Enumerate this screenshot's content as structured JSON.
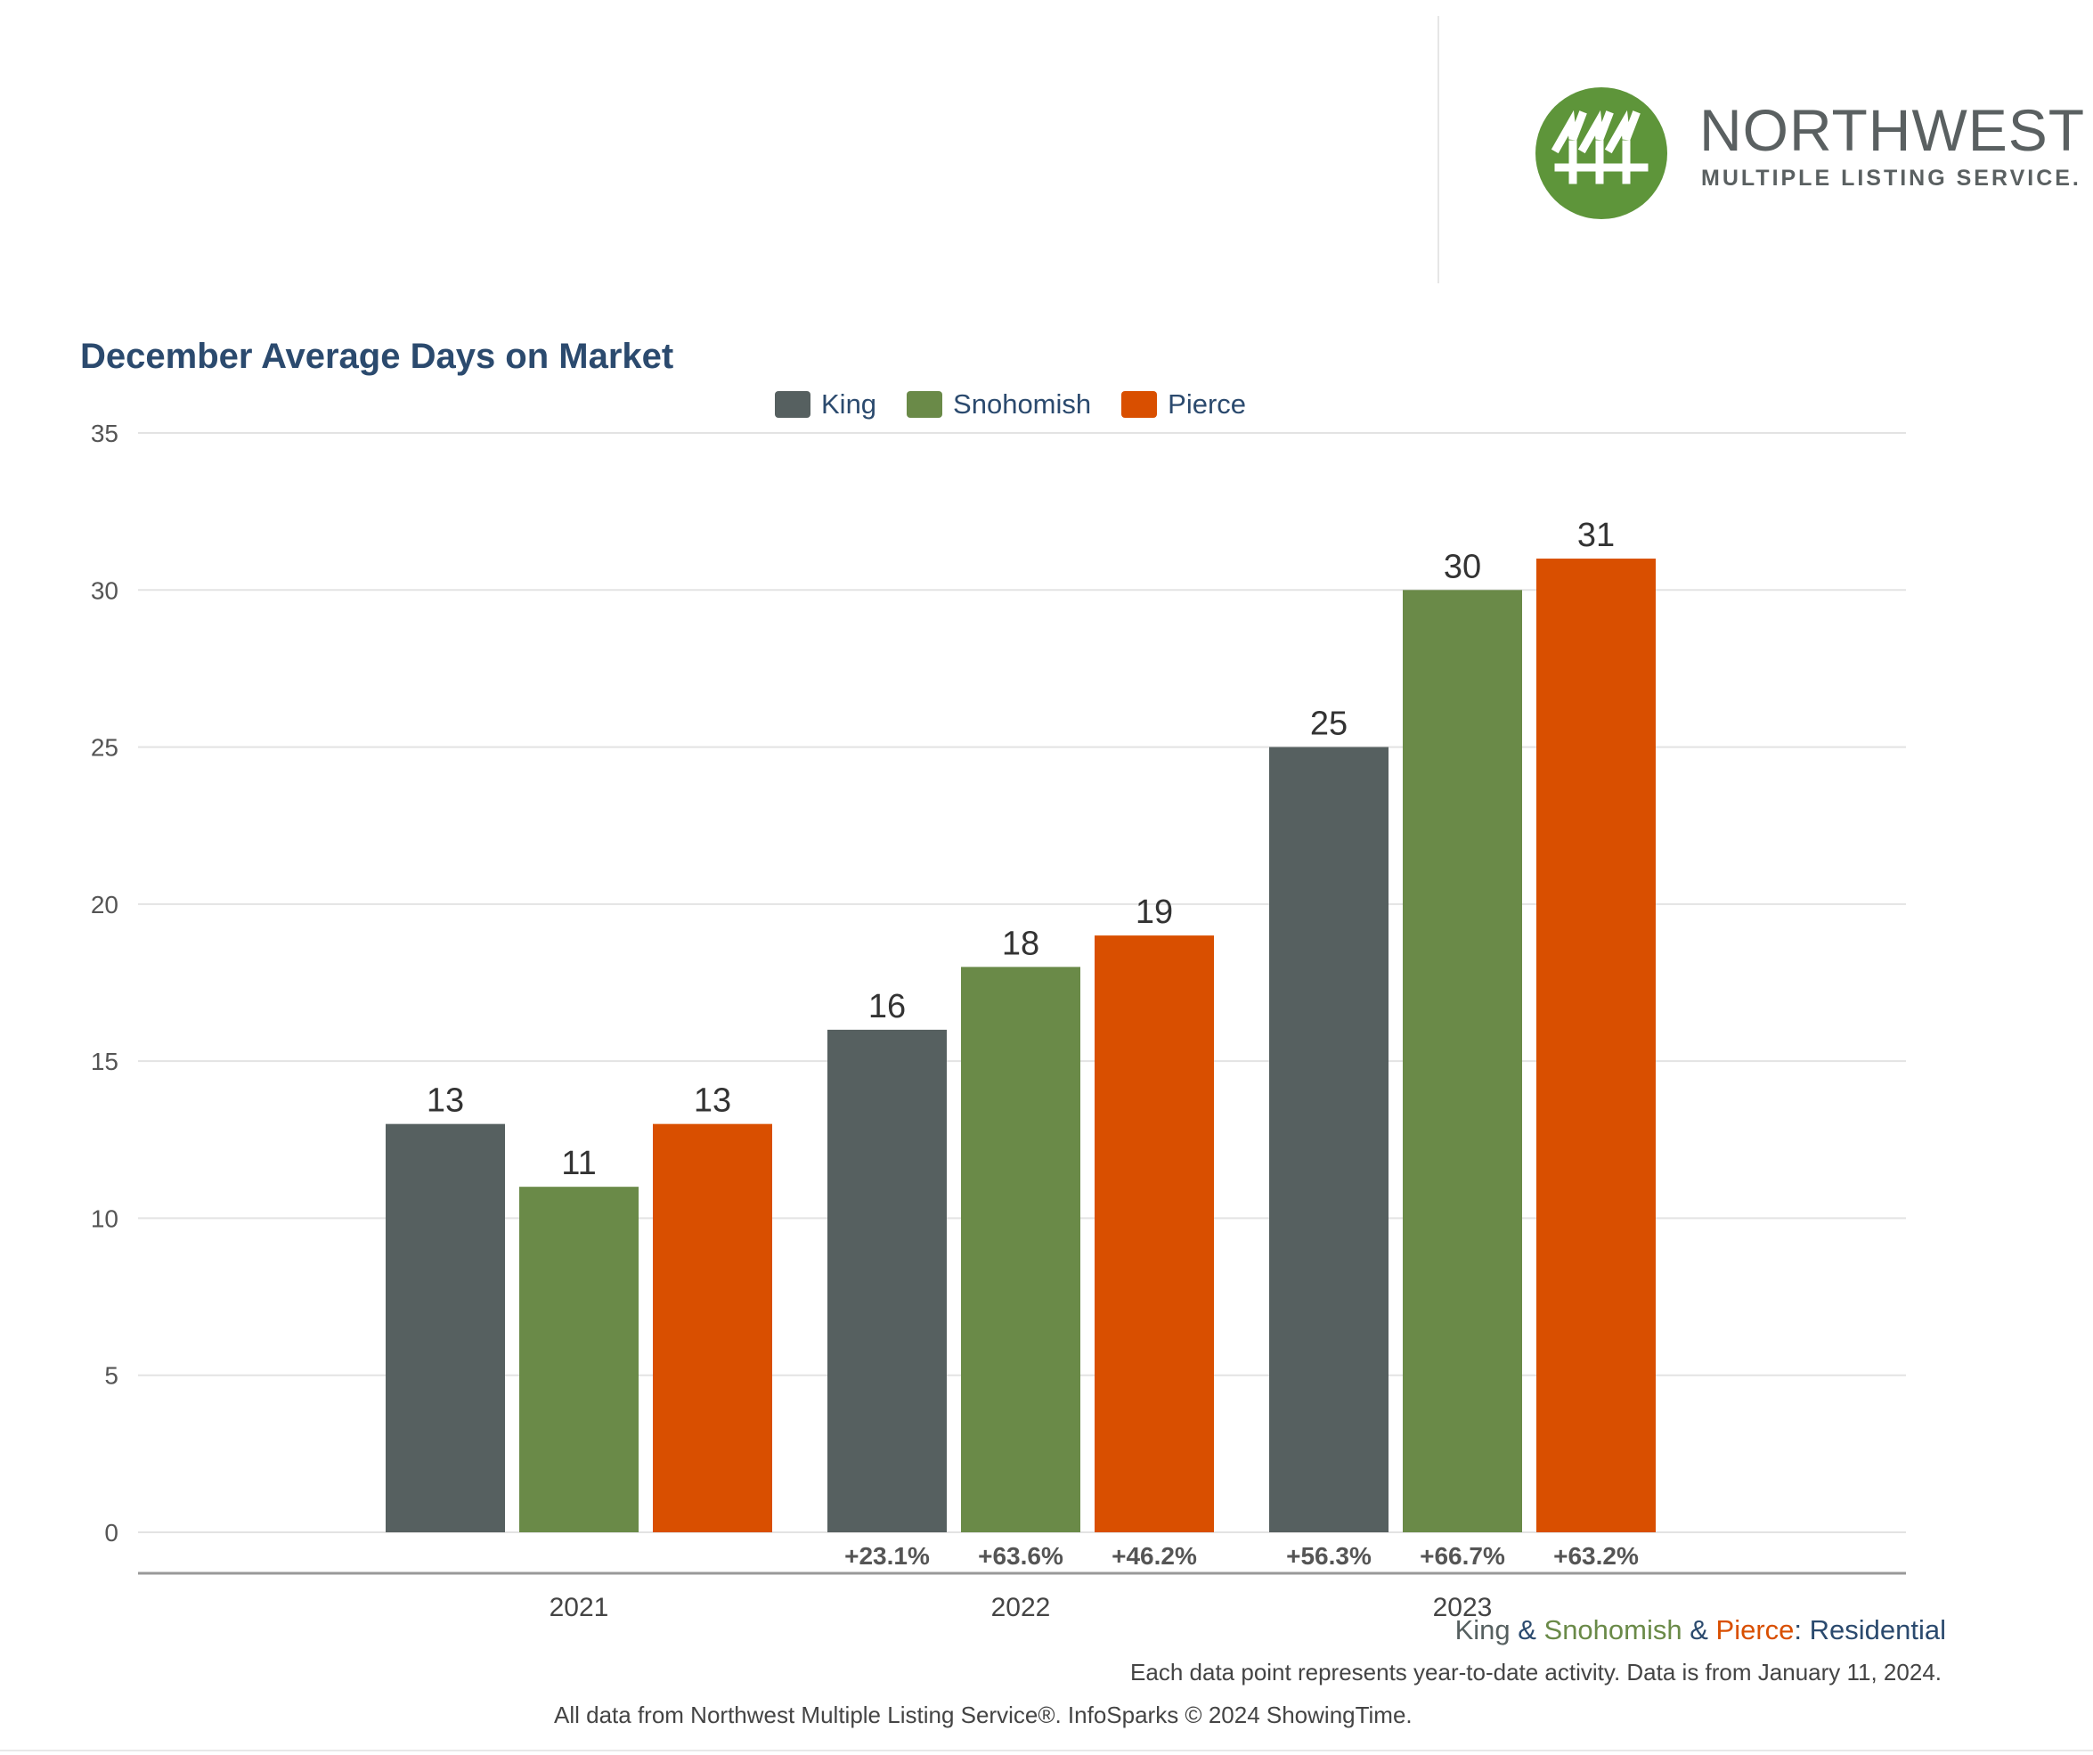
{
  "logo": {
    "name": "NORTHWEST",
    "tagline": "MULTIPLE LISTING SERVICE."
  },
  "colors": {
    "king": "#566060",
    "snohomish": "#6a8a48",
    "pierce": "#d94f00",
    "title": "#2b4a6e",
    "logo_green": "#5e953a",
    "grid": "#e3e3e3"
  },
  "chart_data": {
    "type": "bar",
    "title": "December Average Days on Market",
    "categories": [
      "2021",
      "2022",
      "2023"
    ],
    "series": [
      {
        "name": "King",
        "values": [
          13,
          16,
          25
        ],
        "changes": [
          "",
          "+23.1%",
          "+56.3%"
        ]
      },
      {
        "name": "Snohomish",
        "values": [
          11,
          18,
          30
        ],
        "changes": [
          "",
          "+63.6%",
          "+66.7%"
        ]
      },
      {
        "name": "Pierce",
        "values": [
          13,
          19,
          31
        ],
        "changes": [
          "",
          "+46.2%",
          "+63.2%"
        ]
      }
    ],
    "yticks": [
      0,
      5,
      10,
      15,
      20,
      25,
      30,
      35
    ],
    "ylim": [
      0,
      35
    ],
    "xlabel": "",
    "ylabel": "",
    "grid": true,
    "legend_position": "top-center"
  },
  "subtitle": {
    "king": "King",
    "amp1": " & ",
    "snohomish": "Snohomish",
    "amp2": " & ",
    "pierce": "Pierce",
    "colon": ": ",
    "residential": "Residential"
  },
  "note": "Each data point represents year-to-date activity. Data is from January 11, 2024.",
  "source": "All data from Northwest Multiple Listing Service®. InfoSparks © 2024 ShowingTime."
}
